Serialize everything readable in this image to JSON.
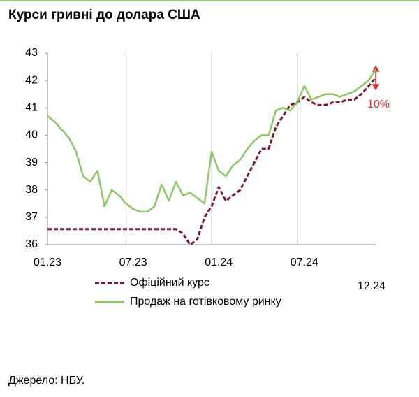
{
  "chart_data": {
    "type": "line",
    "title": "Курси гривні до долара США",
    "categories": [
      "01.23",
      null,
      null,
      null,
      null,
      null,
      null,
      null,
      null,
      null,
      null,
      null,
      "07.23",
      null,
      null,
      null,
      null,
      null,
      null,
      null,
      null,
      null,
      null,
      null,
      "01.24",
      null,
      null,
      null,
      null,
      null,
      null,
      null,
      null,
      null,
      null,
      null,
      "07.24",
      null,
      null,
      null,
      null,
      null,
      null,
      null,
      null,
      null,
      "12.24"
    ],
    "series": [
      {
        "name": "Офіційний курс",
        "color": "#7b1a2b",
        "values": [
          36.57,
          36.57,
          36.57,
          36.57,
          36.57,
          36.57,
          36.57,
          36.57,
          36.57,
          36.57,
          36.57,
          36.57,
          36.57,
          36.57,
          36.57,
          36.57,
          36.57,
          36.57,
          36.57,
          36.4,
          36.0,
          36.2,
          37.0,
          37.4,
          38.1,
          37.6,
          37.8,
          38.0,
          38.5,
          39.0,
          39.5,
          39.5,
          40.3,
          40.7,
          41.1,
          41.2,
          41.4,
          41.2,
          41.1,
          41.1,
          41.2,
          41.2,
          41.3,
          41.3,
          41.5,
          41.8,
          42.1
        ]
      },
      {
        "name": "Продаж на готівковому ринку",
        "color": "#8dc868",
        "values": [
          40.7,
          40.5,
          40.2,
          39.9,
          39.4,
          38.5,
          38.3,
          38.7,
          37.4,
          38.0,
          37.8,
          37.5,
          37.3,
          37.2,
          37.2,
          37.4,
          38.2,
          37.6,
          38.3,
          37.8,
          37.9,
          37.7,
          37.5,
          39.4,
          38.7,
          38.5,
          38.9,
          39.1,
          39.5,
          39.8,
          40.0,
          40.0,
          40.9,
          41.0,
          40.9,
          41.2,
          41.8,
          41.3,
          41.4,
          41.5,
          41.5,
          41.4,
          41.5,
          41.6,
          41.8,
          42.0,
          42.4
        ]
      }
    ],
    "ylim": [
      36,
      43
    ],
    "yticks": [
      36,
      37,
      38,
      39,
      40,
      41,
      42,
      43
    ],
    "annotation": "10%"
  },
  "source": "Джерело: НБУ."
}
